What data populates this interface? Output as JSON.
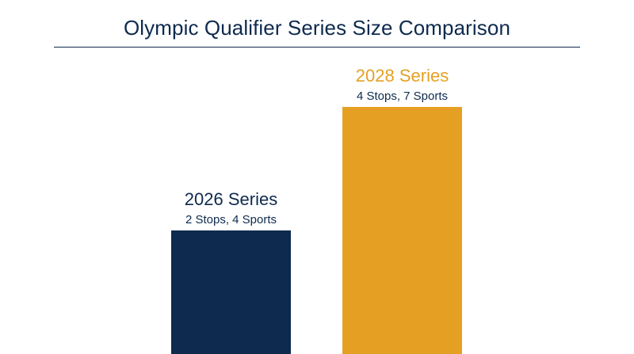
{
  "chart_data": {
    "type": "bar",
    "title": "Olympic Qualifier Series Size Comparison",
    "categories": [
      "2026 Series",
      "2028 Series"
    ],
    "details": [
      "2 Stops, 4 Sports",
      "4 Stops, 7 Sports"
    ],
    "values": [
      2,
      4
    ],
    "ylim": [
      0,
      4
    ],
    "grid": false,
    "legend": "none",
    "colors": [
      "#0e2a4e",
      "#e5a024"
    ],
    "label_colors": [
      "#0e2a4e",
      "#e5a024"
    ],
    "detail_color": "#0e2a4e"
  }
}
